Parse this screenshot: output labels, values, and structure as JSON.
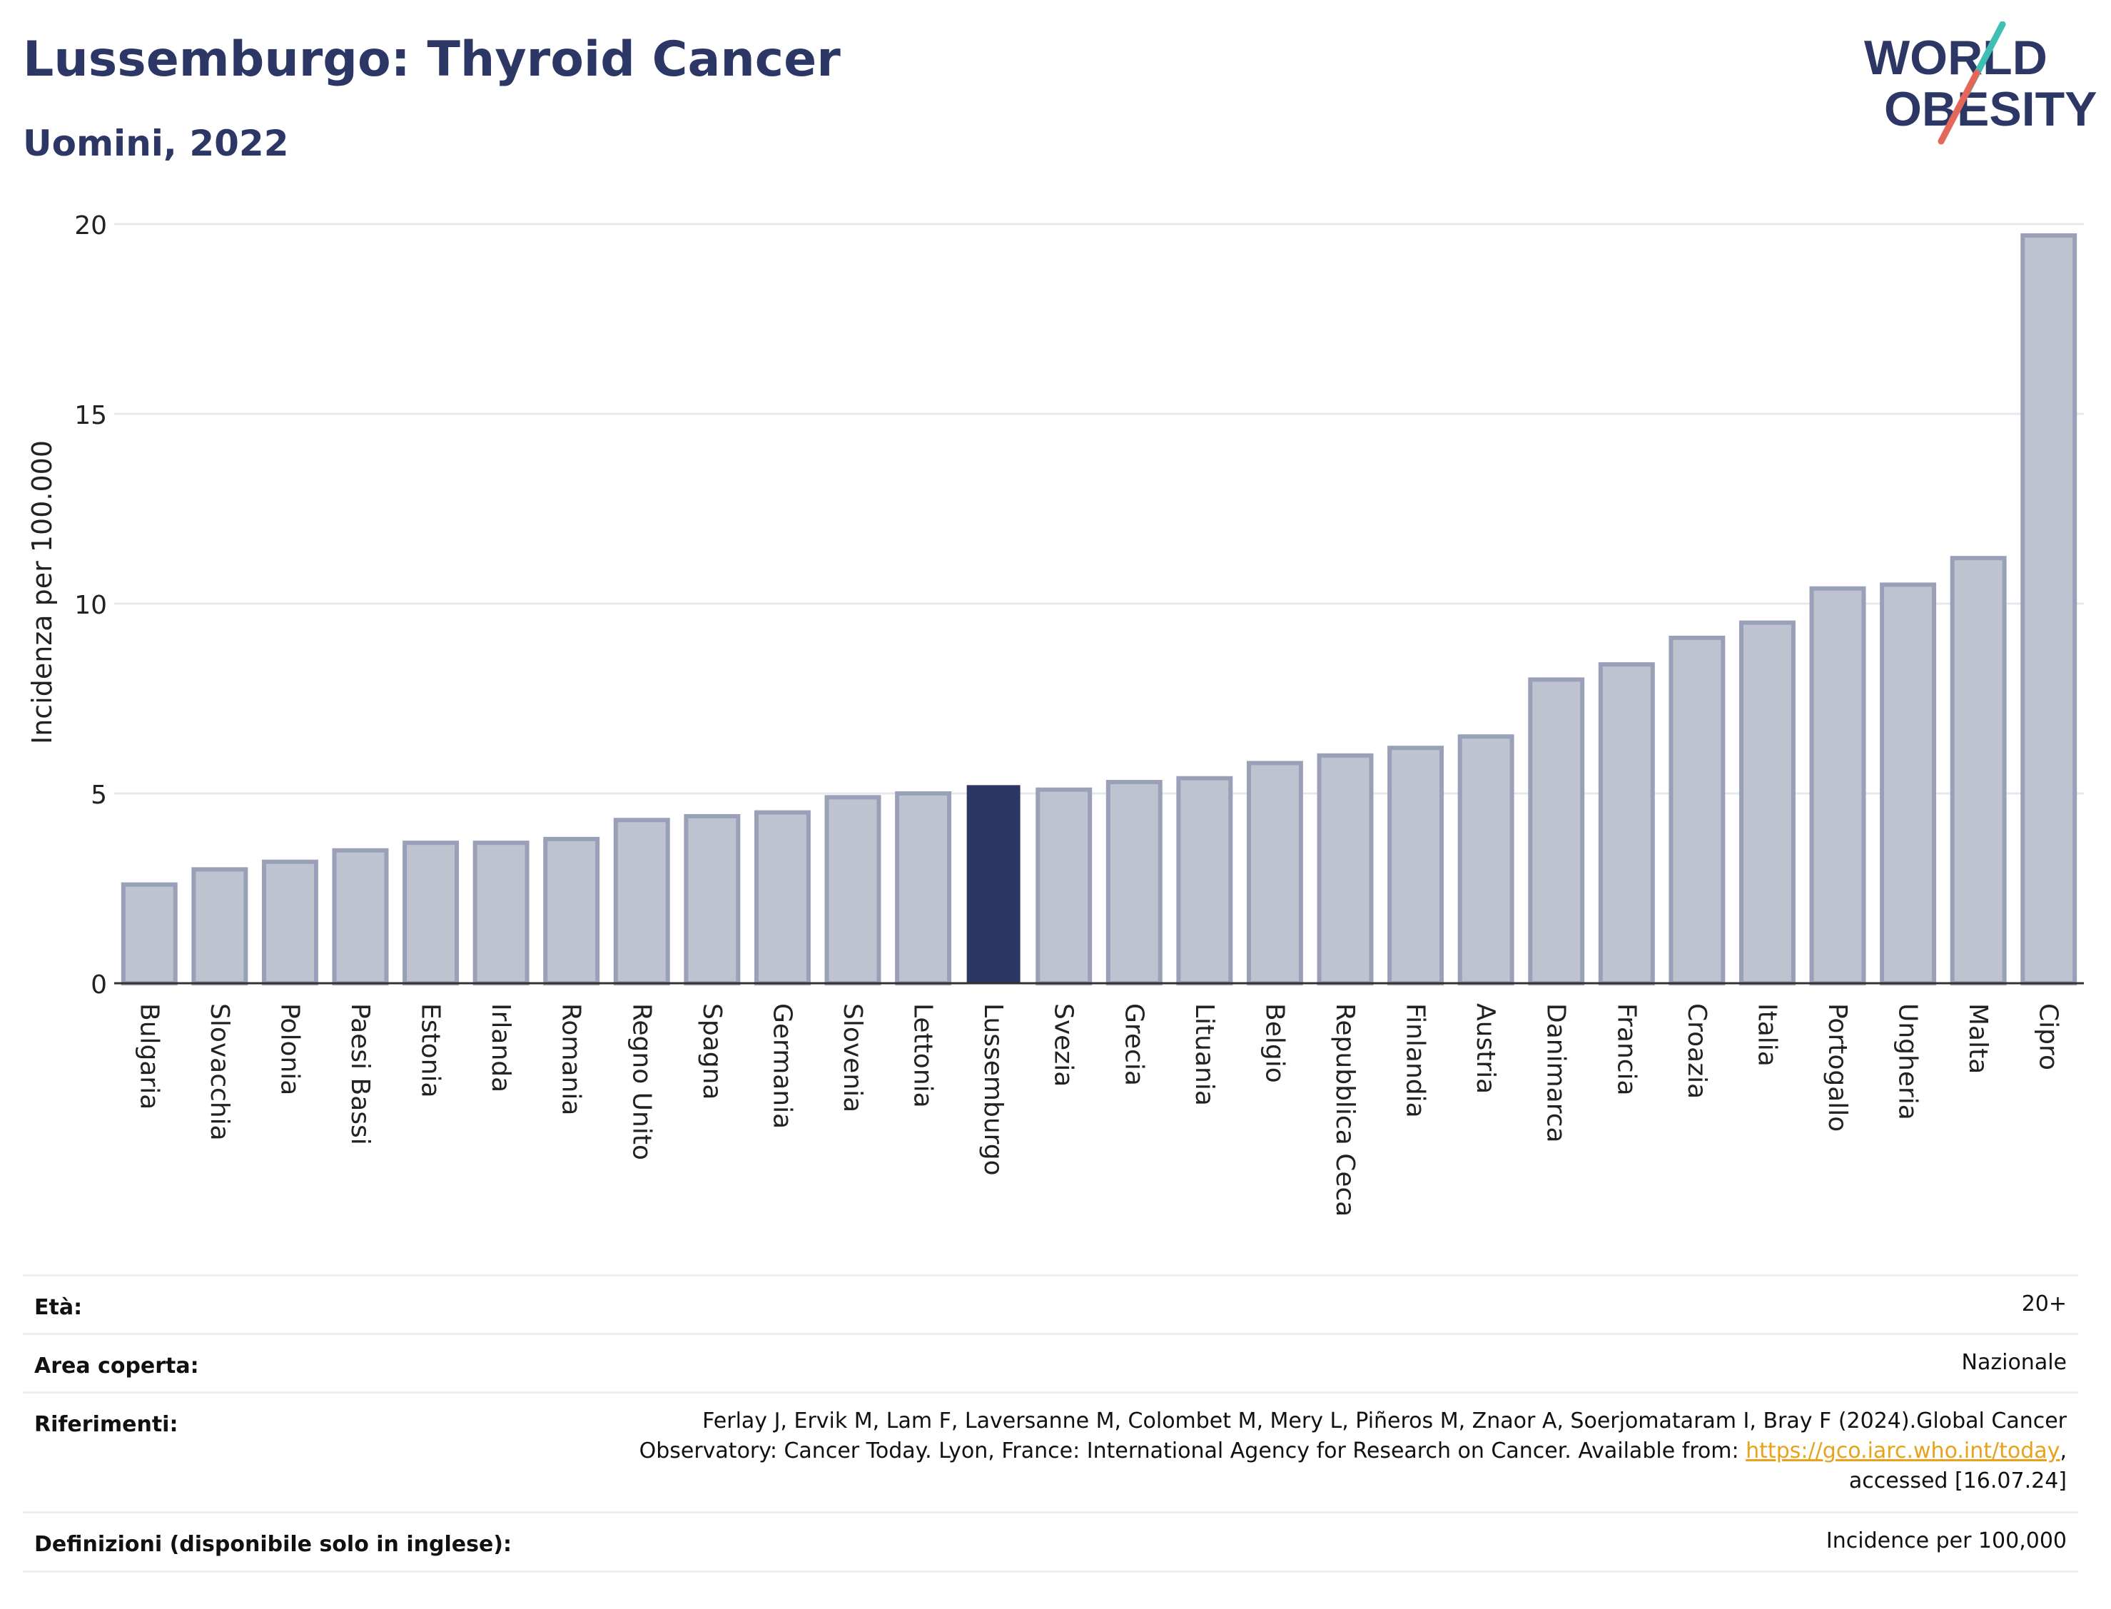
{
  "header": {
    "title": "Lussemburgo: Thyroid Cancer",
    "subtitle": "Uomini, 2022"
  },
  "logo": {
    "line1": "WORLD",
    "line2": "OBESITY",
    "accent_teal": "#3fbfb3",
    "accent_red": "#e5675a",
    "text_color": "#2c3766"
  },
  "chart_data": {
    "type": "bar",
    "ylabel": "Incidenza per 100.000",
    "ylim": [
      0,
      20
    ],
    "yticks": [
      0,
      5,
      10,
      15,
      20
    ],
    "grid": true,
    "highlight": "Lussemburgo",
    "colors": {
      "bar": "#bfc3d0",
      "bar_edge": "#9aa0b8",
      "highlight": "#2c3766"
    },
    "categories": [
      "Bulgaria",
      "Slovacchia",
      "Polonia",
      "Paesi Bassi",
      "Estonia",
      "Irlanda",
      "Romania",
      "Regno Unito",
      "Spagna",
      "Germania",
      "Slovenia",
      "Lettonia",
      "Lussemburgo",
      "Svezia",
      "Grecia",
      "Lituania",
      "Belgio",
      "Repubblica Ceca",
      "Finlandia",
      "Austria",
      "Danimarca",
      "Francia",
      "Croazia",
      "Italia",
      "Portogallo",
      "Ungheria",
      "Malta",
      "Cipro"
    ],
    "values": [
      2.6,
      3.0,
      3.2,
      3.5,
      3.7,
      3.7,
      3.8,
      4.3,
      4.4,
      4.5,
      4.9,
      5.0,
      5.2,
      5.1,
      5.3,
      5.4,
      5.8,
      6.0,
      6.2,
      6.5,
      8.0,
      8.4,
      9.1,
      9.5,
      10.4,
      10.5,
      11.2,
      19.7
    ]
  },
  "info": {
    "age_label": "Età:",
    "age_value": "20+",
    "area_label": "Area coperta:",
    "area_value": "Nazionale",
    "refs_label": "Riferimenti:",
    "refs_line1": "Ferlay J, Ervik M, Lam F, Laversanne M, Colombet M, Mery L, Piñeros M, Znaor A, Soerjomataram I, Bray F (2024).Global Cancer",
    "refs_line2_prefix": "Observatory: Cancer Today. Lyon, France: International Agency for Research on Cancer. Available from: ",
    "refs_link": "https://gco.iarc.who.int/today",
    "refs_line2_suffix": ",",
    "refs_line3": "accessed [16.07.24]",
    "defs_label": "Definizioni (disponibile solo in inglese):",
    "defs_value": "Incidence per 100,000"
  }
}
